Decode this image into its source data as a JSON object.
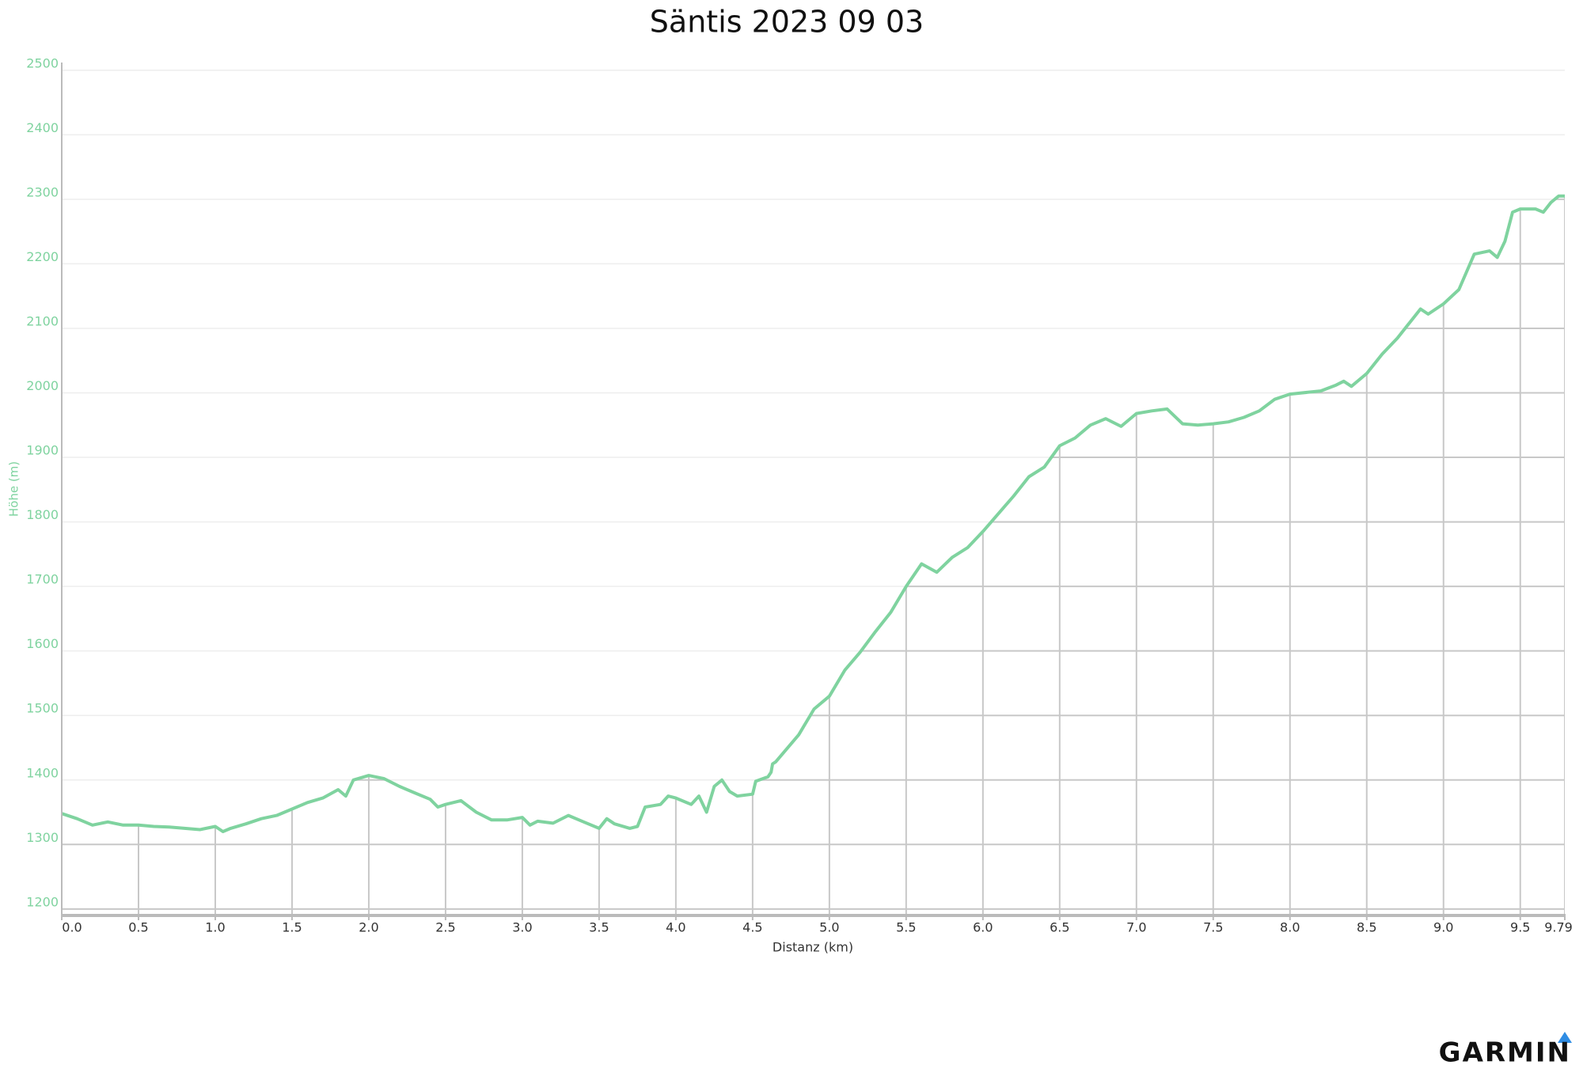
{
  "chart_data": {
    "type": "line",
    "title": "Säntis 2023 09 03",
    "x_label": "Distanz (km)",
    "y_label": "Höhe (m)",
    "color": "#7fd39f",
    "grid": true,
    "xlim": [
      0,
      9.79
    ],
    "ylim": [
      1190,
      2512
    ],
    "xticks": [
      {
        "value": 0,
        "label": "0.0"
      },
      0.5,
      {
        "value": 1,
        "label": "1.0"
      },
      1.5,
      {
        "value": 2,
        "label": "2.0"
      },
      2.5,
      {
        "value": 3,
        "label": "3.0"
      },
      3.5,
      {
        "value": 4,
        "label": "4.0"
      },
      4.5,
      {
        "value": 5,
        "label": "5.0"
      },
      5.5,
      {
        "value": 6,
        "label": "6.0"
      },
      6.5,
      {
        "value": 7,
        "label": "7.0"
      },
      7.5,
      {
        "value": 8,
        "label": "8.0"
      },
      8.5,
      {
        "value": 9,
        "label": "9.0"
      },
      9.5,
      9.79
    ],
    "yticks": [
      1200,
      1300,
      1400,
      1500,
      1600,
      1700,
      1800,
      1900,
      2000,
      2100,
      2200,
      2300,
      2400,
      2500
    ],
    "x": [
      0,
      0.1,
      0.2,
      0.3,
      0.4,
      0.5,
      0.6,
      0.7,
      0.8,
      0.9,
      1.0,
      1.05,
      1.1,
      1.2,
      1.3,
      1.4,
      1.5,
      1.6,
      1.7,
      1.8,
      1.85,
      1.9,
      2.0,
      2.1,
      2.2,
      2.3,
      2.4,
      2.45,
      2.5,
      2.6,
      2.7,
      2.8,
      2.9,
      3.0,
      3.05,
      3.1,
      3.2,
      3.3,
      3.4,
      3.5,
      3.55,
      3.6,
      3.7,
      3.75,
      3.8,
      3.9,
      3.95,
      4.0,
      4.1,
      4.15,
      4.2,
      4.25,
      4.3,
      4.35,
      4.4,
      4.5,
      4.52,
      4.6,
      4.62,
      4.63,
      4.65,
      4.8,
      4.9,
      5.0,
      5.1,
      5.2,
      5.3,
      5.4,
      5.5,
      5.6,
      5.7,
      5.8,
      5.9,
      6.0,
      6.2,
      6.3,
      6.4,
      6.5,
      6.6,
      6.7,
      6.8,
      6.9,
      7.0,
      7.1,
      7.2,
      7.3,
      7.4,
      7.5,
      7.6,
      7.7,
      7.8,
      7.9,
      8.0,
      8.2,
      8.3,
      8.35,
      8.4,
      8.5,
      8.6,
      8.7,
      8.8,
      8.85,
      8.9,
      9.0,
      9.1,
      9.2,
      9.3,
      9.35,
      9.4,
      9.45,
      9.5,
      9.6,
      9.65,
      9.7,
      9.75,
      9.79
    ],
    "values": [
      1348,
      1340,
      1330,
      1335,
      1330,
      1330,
      1328,
      1327,
      1325,
      1323,
      1328,
      1320,
      1325,
      1332,
      1340,
      1345,
      1355,
      1365,
      1372,
      1385,
      1375,
      1400,
      1407,
      1402,
      1390,
      1380,
      1370,
      1358,
      1362,
      1368,
      1350,
      1338,
      1338,
      1342,
      1330,
      1336,
      1333,
      1345,
      1335,
      1325,
      1340,
      1332,
      1325,
      1328,
      1358,
      1362,
      1375,
      1372,
      1362,
      1375,
      1350,
      1390,
      1400,
      1382,
      1375,
      1378,
      1398,
      1405,
      1412,
      1425,
      1428,
      1470,
      1510,
      1530,
      1570,
      1598,
      1630,
      1660,
      1700,
      1735,
      1722,
      1745,
      1760,
      1785,
      1840,
      1870,
      1885,
      1918,
      1930,
      1950,
      1960,
      1948,
      1968,
      1972,
      1975,
      1952,
      1950,
      1952,
      1955,
      1962,
      1972,
      1990,
      1998,
      2003,
      2012,
      2018,
      2010,
      2030,
      2060,
      2085,
      2115,
      2130,
      2122,
      2138,
      2160,
      2215,
      2220,
      2210,
      2235,
      2280,
      2285,
      2285,
      2280,
      2295,
      2305,
      2305
    ]
  },
  "logo": "GARMIN"
}
